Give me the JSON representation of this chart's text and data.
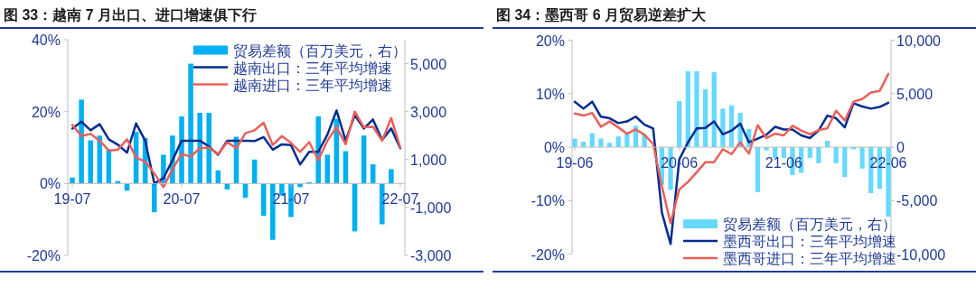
{
  "chart_data": [
    {
      "type": "bar",
      "title": "图 33：越南 7 月出口、进口增速俱下行",
      "categories": [
        "19-07",
        null,
        null,
        null,
        null,
        null,
        null,
        null,
        null,
        null,
        null,
        null,
        "20-07",
        null,
        null,
        null,
        null,
        null,
        null,
        null,
        null,
        null,
        null,
        null,
        "21-07",
        null,
        null,
        null,
        null,
        null,
        null,
        null,
        null,
        null,
        null,
        null,
        "22-07"
      ],
      "series": [
        {
          "name": "贸易差额（百万美元，右）",
          "type": "bar",
          "axis": "y2",
          "color": "#00b0f0",
          "values": [
            250,
            3500,
            1800,
            2000,
            1400,
            100,
            -300,
            2150,
            1900,
            -1200,
            1200,
            2000,
            2800,
            5000,
            2950,
            2950,
            550,
            -250,
            1950,
            -600,
            1000,
            -1350,
            -2350,
            -500,
            -1400,
            -150,
            50,
            2800,
            1200,
            2700,
            1350,
            -2000,
            2000,
            800,
            -1700,
            600,
            null
          ]
        },
        {
          "name": "越南出口：三年平均增速",
          "type": "line",
          "color": "#002c8f",
          "values": [
            15.3,
            17.2,
            14.8,
            16.5,
            12.3,
            10.8,
            8.6,
            16.7,
            11.9,
            0,
            1.5,
            6.5,
            11.9,
            11.9,
            11.9,
            10.3,
            8,
            11.9,
            11.9,
            11.9,
            11.8,
            12.9,
            9.4,
            10.9,
            10.7,
            5.3,
            8.8,
            8.8,
            13.6,
            20.3,
            11.9,
            19,
            15.3,
            17.8,
            12.1,
            15.3,
            9.8
          ]
        },
        {
          "name": "越南进口：三年平均增速",
          "type": "line",
          "color": "#e8605a",
          "values": [
            16.3,
            13.2,
            13.8,
            11.9,
            9.2,
            9.4,
            12.3,
            7.2,
            6.1,
            2.8,
            -1,
            4,
            8.2,
            7.5,
            9.8,
            10,
            8.2,
            11.5,
            9.8,
            14,
            14.8,
            16.9,
            10.7,
            13.2,
            11.3,
            8.8,
            11.5,
            6.5,
            11.9,
            15.7,
            10.9,
            20,
            15.7,
            15.8,
            11.9,
            18.2,
            10
          ]
        }
      ],
      "ylim": [
        -20,
        40
      ],
      "yticks": [
        {
          "value": -20,
          "label": "-20%"
        },
        {
          "value": 0,
          "label": "0%"
        },
        {
          "value": 20,
          "label": "20%"
        },
        {
          "value": 40,
          "label": "40%"
        }
      ],
      "y2lim": [
        -3000,
        6000
      ],
      "y2ticks": [
        {
          "value": -3000,
          "label": "-3,000"
        },
        {
          "value": -1000,
          "label": "-1,000"
        },
        {
          "value": 1000,
          "label": "1,000"
        },
        {
          "value": 3000,
          "label": "3,000"
        },
        {
          "value": 5000,
          "label": "5,000"
        }
      ],
      "legend": "top right"
    },
    {
      "type": "bar",
      "title": "图 34：墨西哥 6 月贸易逆差扩大",
      "categories": [
        "19-06",
        null,
        null,
        null,
        null,
        null,
        null,
        null,
        null,
        null,
        null,
        null,
        "20-06",
        null,
        null,
        null,
        null,
        null,
        null,
        null,
        null,
        null,
        null,
        null,
        "21-06",
        null,
        null,
        null,
        null,
        null,
        null,
        null,
        null,
        null,
        null,
        null,
        "22-06"
      ],
      "series": [
        {
          "name": "贸易差额（百万美元，右）",
          "type": "bar",
          "axis": "y2",
          "color": "#66d9ff",
          "values": [
            800,
            500,
            1300,
            800,
            400,
            1000,
            1300,
            2000,
            1200,
            null,
            -3500,
            -4000,
            4300,
            7100,
            7100,
            5400,
            7000,
            3600,
            3900,
            3200,
            1700,
            -4200,
            -300,
            -1000,
            -1000,
            -2600,
            -2400,
            -1000,
            -1500,
            600,
            -1500,
            -2800,
            -200,
            -2000,
            -4300,
            -3900,
            -6500
          ]
        },
        {
          "name": "墨西哥出口：三年平均增速",
          "type": "line",
          "color": "#002c8f",
          "values": [
            8.5,
            7.2,
            8.5,
            5.7,
            5.4,
            4.5,
            4.8,
            5.7,
            4.2,
            3.5,
            -12.2,
            -18.1,
            -2.3,
            0.9,
            3.5,
            3.6,
            4.8,
            2.4,
            3.1,
            4.4,
            0.9,
            1.6,
            2.3,
            3.8,
            3.3,
            3.3,
            2.2,
            1.7,
            3.1,
            5.9,
            5.4,
            3.7,
            8.2,
            7.6,
            7.2,
            7.5,
            8.3
          ]
        },
        {
          "name": "墨西哥进口：三年平均增速",
          "type": "line",
          "color": "#e8605a",
          "values": [
            6.3,
            5.9,
            6.4,
            3.8,
            4.8,
            3.7,
            2.5,
            3.3,
            2.3,
            0.6,
            -7.3,
            -14.2,
            -7.9,
            -6.5,
            -4.7,
            -2.8,
            -2.8,
            -0.4,
            -1.3,
            0.9,
            -1.2,
            4.1,
            1.7,
            2.5,
            2.2,
            4,
            3.1,
            2.4,
            3.2,
            3.5,
            6.8,
            5,
            8.5,
            9,
            10.2,
            10.5,
            13.7
          ]
        }
      ],
      "ylim": [
        -20,
        20
      ],
      "yticks": [
        {
          "value": -20,
          "label": "-20%"
        },
        {
          "value": -10,
          "label": "-10%"
        },
        {
          "value": 0,
          "label": "0%"
        },
        {
          "value": 10,
          "label": "10%"
        },
        {
          "value": 20,
          "label": "20%"
        }
      ],
      "y2lim": [
        -10000,
        10000
      ],
      "y2ticks": [
        {
          "value": -10000,
          "label": "-10,000"
        },
        {
          "value": -5000,
          "label": "-5,000"
        },
        {
          "value": 0,
          "label": "0"
        },
        {
          "value": 5000,
          "label": "5,000"
        },
        {
          "value": 10000,
          "label": "10,000"
        }
      ],
      "legend": "bottom right"
    }
  ]
}
